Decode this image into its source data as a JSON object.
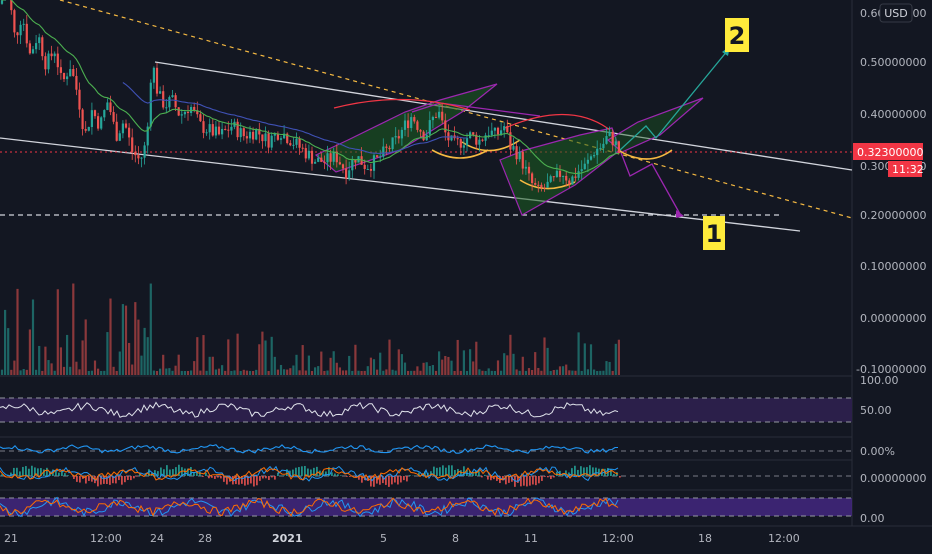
{
  "currency_badge": "USD",
  "price_axis": {
    "ticks": [
      "0.60000000",
      "0.50000000",
      "0.40000000",
      "0.30000000",
      "0.20000000",
      "0.10000000",
      "0.00000000",
      "-0.10000000"
    ],
    "current_price": "0.32300000",
    "countdown": "11:32"
  },
  "time_axis": {
    "ticks": [
      "21",
      "12:00",
      "24",
      "28",
      "2021",
      "5",
      "8",
      "11",
      "12:00",
      "18",
      "12:00"
    ]
  },
  "annotations": {
    "target_up": "2",
    "target_down": "1"
  },
  "indicator_panes": {
    "rsi": {
      "ticks": [
        "100.00",
        "50.00"
      ]
    },
    "percent": {
      "ticks": [
        "0.00%"
      ]
    },
    "macd": {
      "ticks": [
        "0.00000000"
      ]
    },
    "stoch": {
      "ticks": [
        "0.00"
      ]
    }
  },
  "colors": {
    "background": "#131722",
    "up_candle": "#26a69a",
    "down_candle": "#ef5350",
    "badge_up": "#00ff41",
    "current_price_tag": "#f23645",
    "label_bg": "#ffeb3b",
    "wedge": "#9c27b0",
    "rsi_band": "#2b1f4a",
    "stoch_band": "#4a2a8c"
  },
  "chart_data": {
    "type": "candlestick",
    "y_axis": {
      "min": -0.1,
      "max": 0.6,
      "scale": "linear"
    },
    "x_axis_labels": [
      "21",
      "12:00",
      "24",
      "28",
      "2021",
      "5",
      "8",
      "11",
      "12:00",
      "18",
      "12:00"
    ],
    "last_price": 0.323,
    "price_path": [
      [
        0,
        0.62
      ],
      [
        8,
        0.65
      ],
      [
        15,
        0.55
      ],
      [
        22,
        0.6
      ],
      [
        30,
        0.52
      ],
      [
        38,
        0.56
      ],
      [
        46,
        0.5
      ],
      [
        55,
        0.53
      ],
      [
        62,
        0.46
      ],
      [
        70,
        0.5
      ],
      [
        78,
        0.44
      ],
      [
        85,
        0.36
      ],
      [
        92,
        0.41
      ],
      [
        100,
        0.38
      ],
      [
        108,
        0.43
      ],
      [
        116,
        0.36
      ],
      [
        124,
        0.39
      ],
      [
        132,
        0.33
      ],
      [
        140,
        0.31
      ],
      [
        147,
        0.35
      ],
      [
        150,
        0.47
      ],
      [
        153,
        0.5
      ],
      [
        158,
        0.44
      ],
      [
        165,
        0.42
      ],
      [
        172,
        0.43
      ],
      [
        180,
        0.4
      ],
      [
        190,
        0.42
      ],
      [
        200,
        0.38
      ],
      [
        210,
        0.37
      ],
      [
        220,
        0.36
      ],
      [
        232,
        0.38
      ],
      [
        244,
        0.36
      ],
      [
        256,
        0.37
      ],
      [
        268,
        0.35
      ],
      [
        280,
        0.37
      ],
      [
        292,
        0.35
      ],
      [
        304,
        0.33
      ],
      [
        316,
        0.31
      ],
      [
        326,
        0.31
      ],
      [
        336,
        0.32
      ],
      [
        346,
        0.29
      ],
      [
        356,
        0.32
      ],
      [
        366,
        0.3
      ],
      [
        376,
        0.31
      ],
      [
        386,
        0.33
      ],
      [
        396,
        0.35
      ],
      [
        405,
        0.38
      ],
      [
        412,
        0.4
      ],
      [
        418,
        0.38
      ],
      [
        425,
        0.36
      ],
      [
        432,
        0.39
      ],
      [
        438,
        0.41
      ],
      [
        446,
        0.36
      ],
      [
        454,
        0.34
      ],
      [
        462,
        0.35
      ],
      [
        470,
        0.36
      ],
      [
        480,
        0.35
      ],
      [
        488,
        0.37
      ],
      [
        496,
        0.36
      ],
      [
        504,
        0.38
      ],
      [
        510,
        0.34
      ],
      [
        516,
        0.33
      ],
      [
        522,
        0.31
      ],
      [
        530,
        0.27
      ],
      [
        538,
        0.25
      ],
      [
        546,
        0.26
      ],
      [
        554,
        0.27
      ],
      [
        562,
        0.29
      ],
      [
        570,
        0.27
      ],
      [
        578,
        0.29
      ],
      [
        586,
        0.3
      ],
      [
        594,
        0.33
      ],
      [
        602,
        0.34
      ],
      [
        608,
        0.36
      ],
      [
        614,
        0.35
      ],
      [
        620,
        0.323
      ]
    ],
    "annotations": [
      {
        "text": "2",
        "meaning": "upside target"
      },
      {
        "text": "1",
        "meaning": "downside target"
      }
    ],
    "grid": false,
    "panes": [
      "price",
      "volume",
      "rsi",
      "percent",
      "macd",
      "stoch"
    ]
  }
}
